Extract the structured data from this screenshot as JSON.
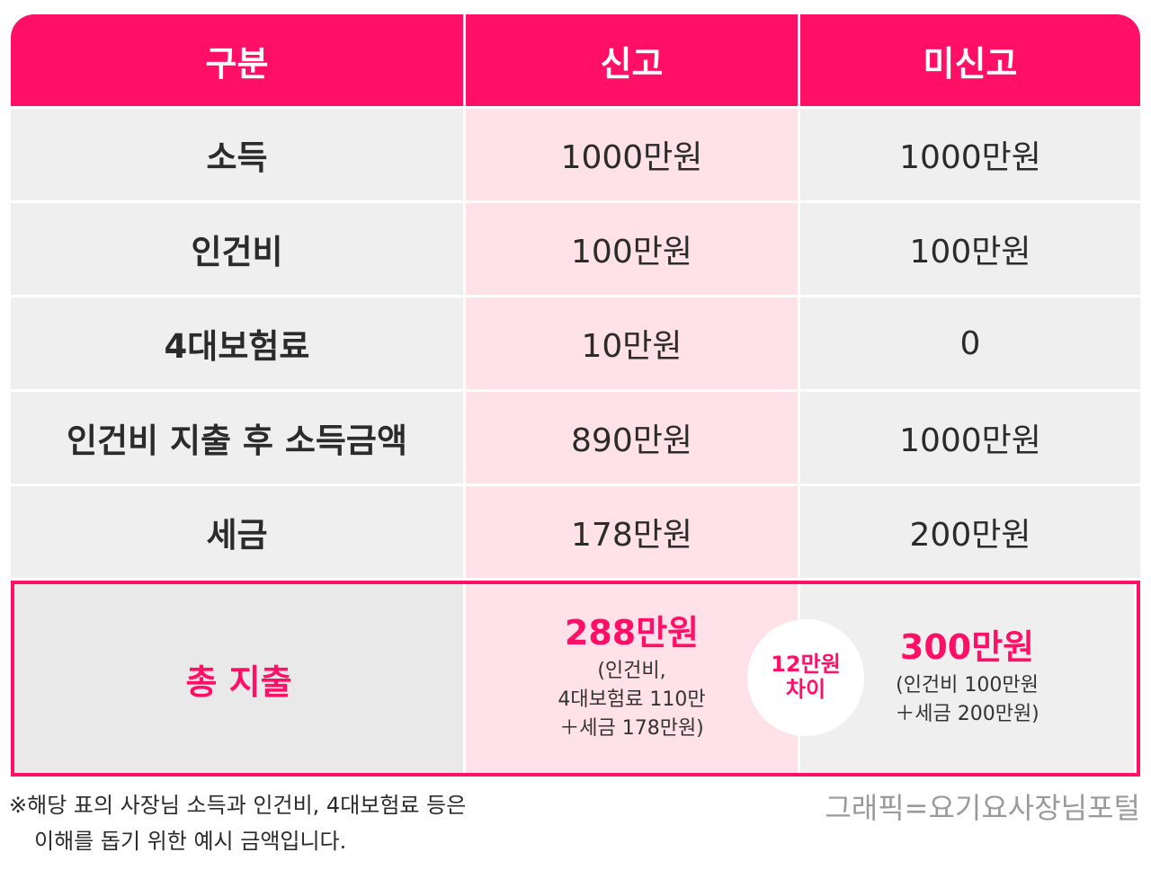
{
  "table": {
    "headers": [
      "구분",
      "신고",
      "미신고"
    ],
    "rows": [
      {
        "label": "소득",
        "reported": "1000만원",
        "unreported": "1000만원"
      },
      {
        "label": "인건비",
        "reported": "100만원",
        "unreported": "100만원"
      },
      {
        "label": "4대보험료",
        "reported": "10만원",
        "unreported": "0"
      },
      {
        "label": "인건비 지출 후 소득금액",
        "reported": "890만원",
        "unreported": "1000만원"
      },
      {
        "label": "세금",
        "reported": "178만원",
        "unreported": "200만원"
      }
    ],
    "total": {
      "label": "총 지출",
      "reported_amount": "288만원",
      "reported_detail": [
        "(인건비,",
        "4대보험료 110만",
        "＋세금 178만원)"
      ],
      "unreported_amount": "300만원",
      "unreported_detail": [
        "(인건비 100만원",
        "＋세금 200만원)"
      ],
      "difference": [
        "12만원",
        "차이"
      ]
    }
  },
  "footnote": [
    "※해당 표의 사장님 소득과 인건비, 4대보험료 등은",
    "이해를 돕기 위한 예시 금액입니다."
  ],
  "credit": "그래픽=요기요사장님포털",
  "colors": {
    "accent": "#ff1066",
    "reported_bg": "#ffe1ea",
    "cell_bg": "#efefef"
  }
}
